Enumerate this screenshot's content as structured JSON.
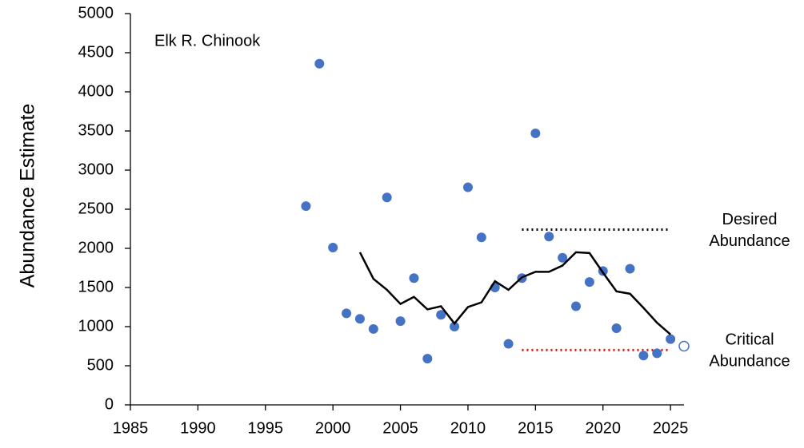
{
  "chart_data": {
    "type": "scatter",
    "title": "Elk R. Chinook",
    "y_label": "Abundance Estimate",
    "xlim": [
      1985,
      2026
    ],
    "xticks": [
      1985,
      1990,
      1995,
      2000,
      2005,
      2010,
      2015,
      2020,
      2025
    ],
    "ylim": [
      0,
      5000
    ],
    "yticks": [
      0,
      500,
      1000,
      1500,
      2000,
      2500,
      3000,
      3500,
      4000,
      4500,
      5000
    ],
    "series": [
      {
        "type": "scatter",
        "color": "#4472c4",
        "x": [
          1998,
          1999,
          2000,
          2001,
          2002,
          2003,
          2004,
          2005,
          2006,
          2007,
          2008,
          2009,
          2010,
          2011,
          2012,
          2013,
          2014,
          2015,
          2016,
          2017,
          2018,
          2019,
          2020,
          2021,
          2022,
          2023,
          2024,
          2025
        ],
        "values": [
          2540,
          4360,
          2010,
          1170,
          1100,
          970,
          2650,
          1070,
          1620,
          590,
          1150,
          1000,
          2780,
          2140,
          1500,
          780,
          1620,
          3470,
          2150,
          1880,
          1260,
          1570,
          1710,
          980,
          1740,
          630,
          660,
          840
        ]
      },
      {
        "type": "line",
        "color": "#000000",
        "x": [
          2002,
          2003,
          2004,
          2005,
          2006,
          2007,
          2008,
          2009,
          2010,
          2011,
          2012,
          2013,
          2014,
          2015,
          2016,
          2017,
          2018,
          2019,
          2020,
          2021,
          2022,
          2023,
          2024,
          2025
        ],
        "values": [
          1950,
          1610,
          1470,
          1290,
          1380,
          1220,
          1260,
          1040,
          1250,
          1310,
          1580,
          1470,
          1630,
          1700,
          1700,
          1780,
          1950,
          1940,
          1690,
          1450,
          1420,
          1240,
          1050,
          900
        ]
      },
      {
        "type": "scatter",
        "color": "#4472c4",
        "hollow": true,
        "x": [
          2026
        ],
        "values": [
          750
        ]
      }
    ],
    "reference_lines": [
      {
        "value": 2240,
        "x": [
          2014,
          2025
        ],
        "color": "#000000",
        "label": [
          "Desired",
          "Abundance"
        ]
      },
      {
        "value": 700,
        "x": [
          2014,
          2025
        ],
        "color": "#ff0000",
        "label": [
          "Critical",
          "Abundance"
        ]
      }
    ]
  }
}
